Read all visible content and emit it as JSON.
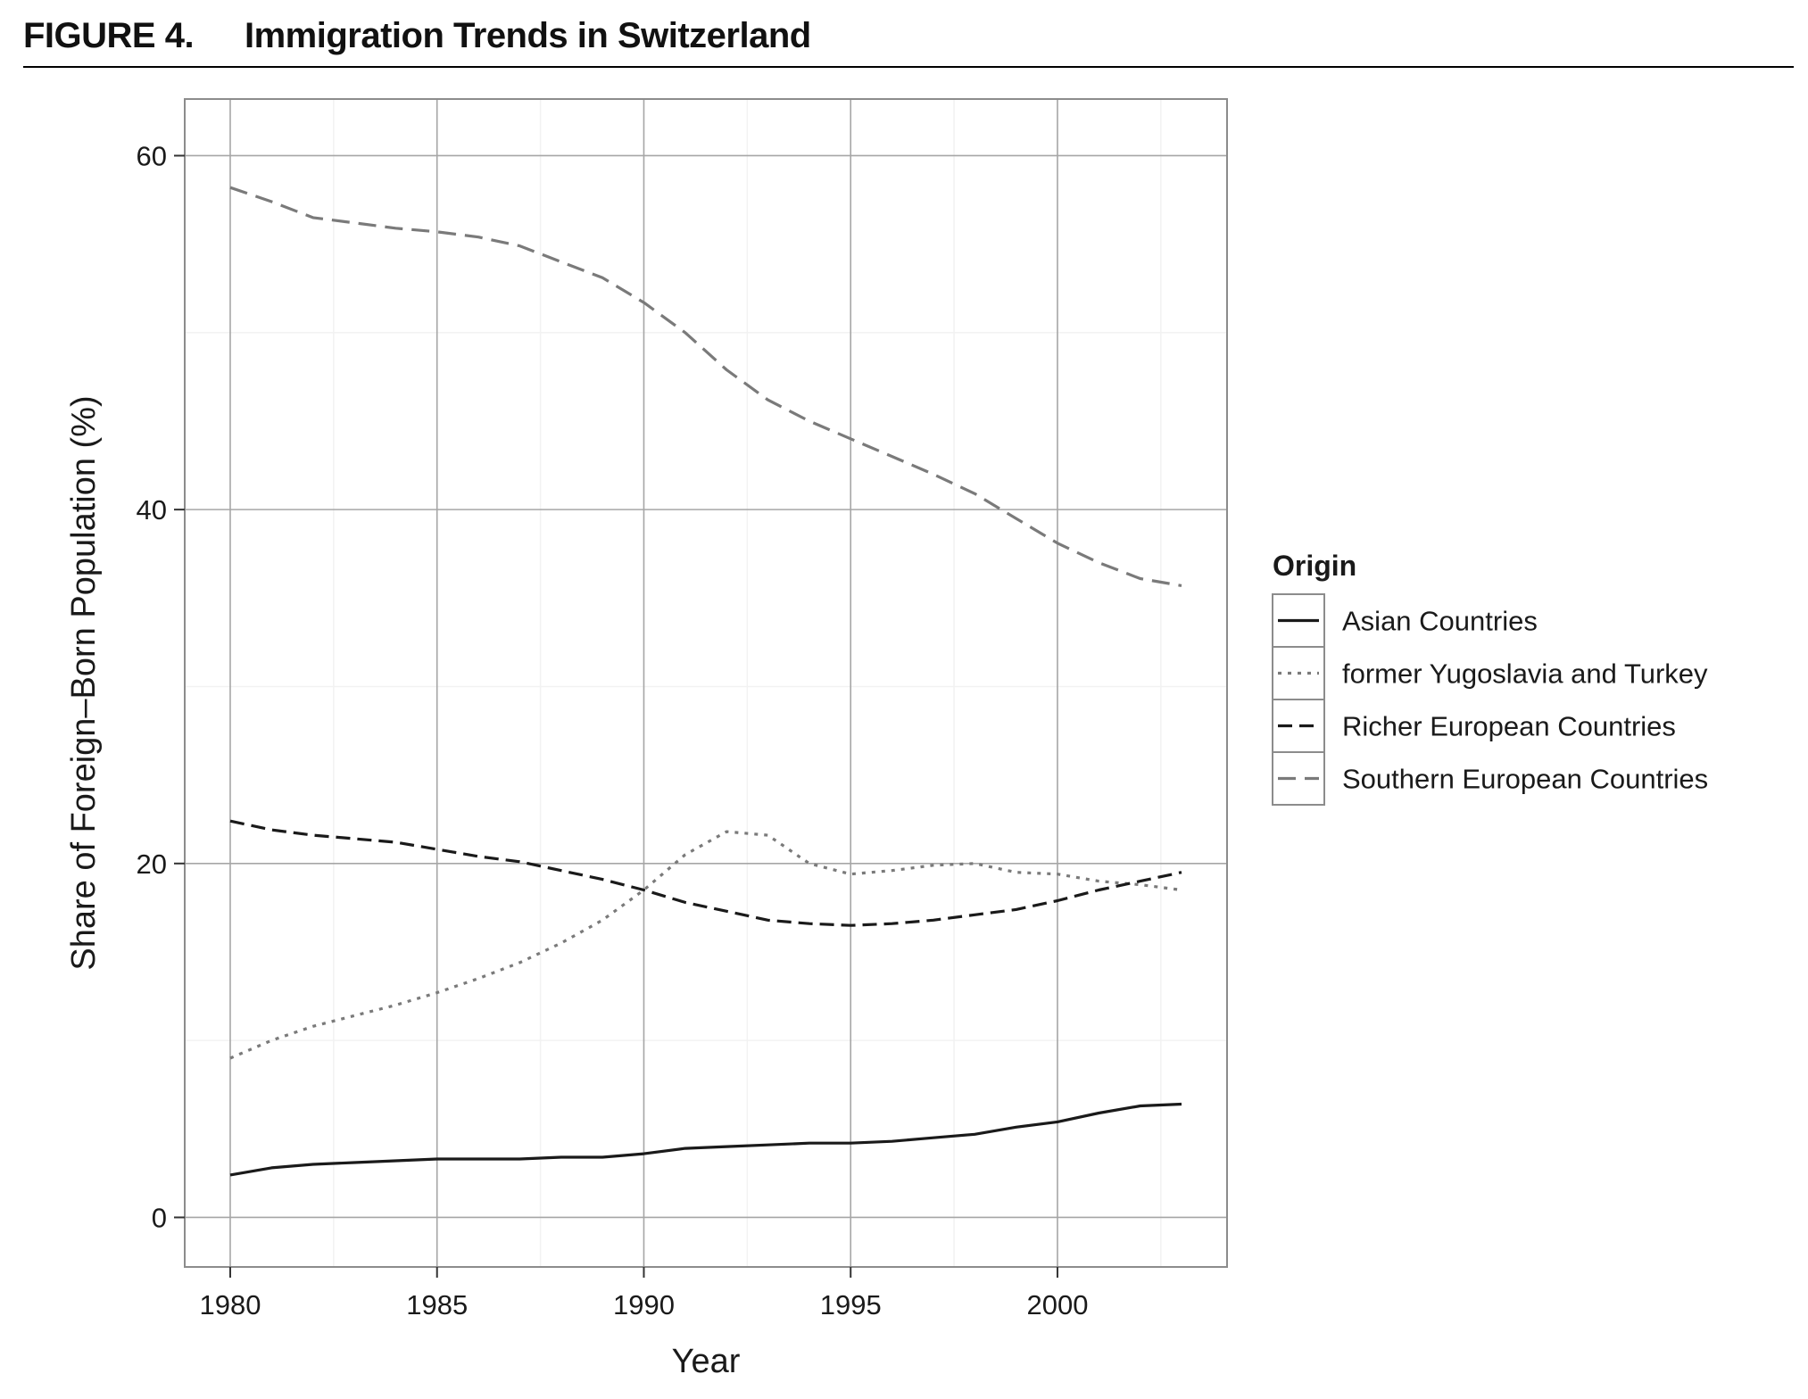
{
  "figure": {
    "label": "FIGURE 4.",
    "title": "Immigration Trends in Switzerland"
  },
  "chart_data": {
    "type": "line",
    "title": "Immigration Trends in Switzerland",
    "xlabel": "Year",
    "ylabel": "Share of Foreign–Born Population (%)",
    "xlim": [
      1978.9,
      2004.1
    ],
    "ylim": [
      -2.8,
      63.2
    ],
    "xticks": [
      1980,
      1985,
      1990,
      1995,
      2000
    ],
    "yticks": [
      0,
      20,
      40,
      60
    ],
    "grid": true,
    "legend": {
      "title": "Origin",
      "position": "right"
    },
    "x": [
      1980,
      1981,
      1982,
      1983,
      1984,
      1985,
      1986,
      1987,
      1988,
      1989,
      1990,
      1991,
      1992,
      1993,
      1994,
      1995,
      1996,
      1997,
      1998,
      1999,
      2000,
      2001,
      2002,
      2003
    ],
    "series": [
      {
        "name": "Asian Countries",
        "color": "#1a1a1a",
        "dash": "solid",
        "values": [
          2.4,
          2.8,
          3.0,
          3.1,
          3.2,
          3.3,
          3.3,
          3.3,
          3.4,
          3.4,
          3.6,
          3.9,
          4.0,
          4.1,
          4.2,
          4.2,
          4.3,
          4.5,
          4.7,
          5.1,
          5.4,
          5.9,
          6.3,
          6.4
        ]
      },
      {
        "name": "former Yugoslavia and Turkey",
        "color": "#7a7a7a",
        "dash": "dotted",
        "values": [
          9.0,
          10.0,
          10.8,
          11.4,
          12.0,
          12.7,
          13.5,
          14.4,
          15.5,
          16.8,
          18.5,
          20.5,
          21.8,
          21.6,
          20.0,
          19.4,
          19.6,
          19.9,
          20.0,
          19.5,
          19.4,
          19.0,
          18.8,
          18.5
        ]
      },
      {
        "name": "Richer European Countries",
        "color": "#1a1a1a",
        "dash": "dashed",
        "values": [
          22.4,
          21.9,
          21.6,
          21.4,
          21.2,
          20.8,
          20.4,
          20.1,
          19.6,
          19.1,
          18.5,
          17.8,
          17.3,
          16.8,
          16.6,
          16.5,
          16.6,
          16.8,
          17.1,
          17.4,
          17.9,
          18.5,
          19.0,
          19.5
        ]
      },
      {
        "name": "Southern European Countries",
        "color": "#7a7a7a",
        "dash": "longdash",
        "values": [
          58.2,
          57.4,
          56.5,
          56.2,
          55.9,
          55.7,
          55.4,
          54.9,
          54.0,
          53.1,
          51.7,
          50.0,
          47.9,
          46.2,
          45.0,
          44.0,
          43.0,
          42.0,
          40.9,
          39.5,
          38.1,
          37.0,
          36.1,
          35.7
        ]
      }
    ]
  }
}
